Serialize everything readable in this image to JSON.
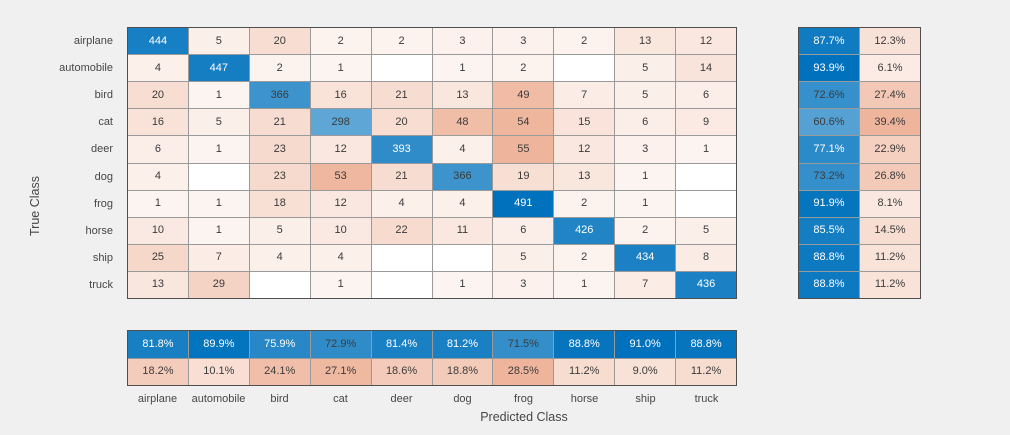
{
  "figure": {
    "background": "#F0F0F0"
  },
  "chart_data": {
    "type": "heatmap",
    "subtype": "confusion-matrix",
    "title": "",
    "xlabel": "Predicted Class",
    "ylabel": "True Class",
    "classes": [
      "airplane",
      "automobile",
      "bird",
      "cat",
      "deer",
      "dog",
      "frog",
      "horse",
      "ship",
      "truck"
    ],
    "matrix": [
      [
        444,
        5,
        20,
        2,
        2,
        3,
        3,
        2,
        13,
        12
      ],
      [
        4,
        447,
        2,
        1,
        null,
        1,
        2,
        null,
        5,
        14
      ],
      [
        20,
        1,
        366,
        16,
        21,
        13,
        49,
        7,
        5,
        6
      ],
      [
        16,
        5,
        21,
        298,
        20,
        48,
        54,
        15,
        6,
        9
      ],
      [
        6,
        1,
        23,
        12,
        393,
        4,
        55,
        12,
        3,
        1
      ],
      [
        4,
        null,
        23,
        53,
        21,
        366,
        19,
        13,
        1,
        null
      ],
      [
        1,
        1,
        18,
        12,
        4,
        4,
        491,
        2,
        1,
        null
      ],
      [
        10,
        1,
        5,
        10,
        22,
        11,
        6,
        426,
        2,
        5
      ],
      [
        25,
        7,
        4,
        4,
        null,
        null,
        5,
        2,
        434,
        8
      ],
      [
        13,
        29,
        null,
        1,
        null,
        1,
        3,
        1,
        7,
        436
      ]
    ],
    "row_summary": {
      "hit": [
        87.7,
        93.9,
        72.6,
        60.6,
        77.1,
        73.2,
        91.9,
        85.5,
        88.8,
        88.8
      ],
      "miss": [
        12.3,
        6.1,
        27.4,
        39.4,
        22.9,
        26.8,
        8.1,
        14.5,
        11.2,
        11.2
      ]
    },
    "col_summary": {
      "hit": [
        81.8,
        89.9,
        75.9,
        72.9,
        81.4,
        81.2,
        71.5,
        88.8,
        91.0,
        88.8
      ],
      "miss": [
        18.2,
        10.1,
        24.1,
        27.1,
        18.6,
        18.8,
        28.5,
        11.2,
        9.0,
        11.2
      ]
    },
    "percent_suffix": "%",
    "legend_position": "none",
    "grid": "on",
    "colors": {
      "diagonal": "#0072BD",
      "off_diagonal": "#D95319",
      "empty_cell": "#FFFFFF",
      "cell_text_dark": "#3B3B3B",
      "cell_text_light": "#FFFFFF",
      "grid_line": "#9A9A9A",
      "frame": "#4F4F4F",
      "label_text": "#464646"
    },
    "white_text": {
      "diag_classes": [
        "airplane",
        "automobile",
        "deer",
        "frog",
        "horse",
        "ship",
        "truck"
      ],
      "row_hit_classes": [
        "airplane",
        "automobile",
        "deer",
        "frog",
        "horse",
        "ship",
        "truck"
      ],
      "col_hit_classes": [
        "airplane",
        "automobile",
        "bird",
        "deer",
        "dog",
        "horse",
        "ship",
        "truck"
      ]
    }
  }
}
